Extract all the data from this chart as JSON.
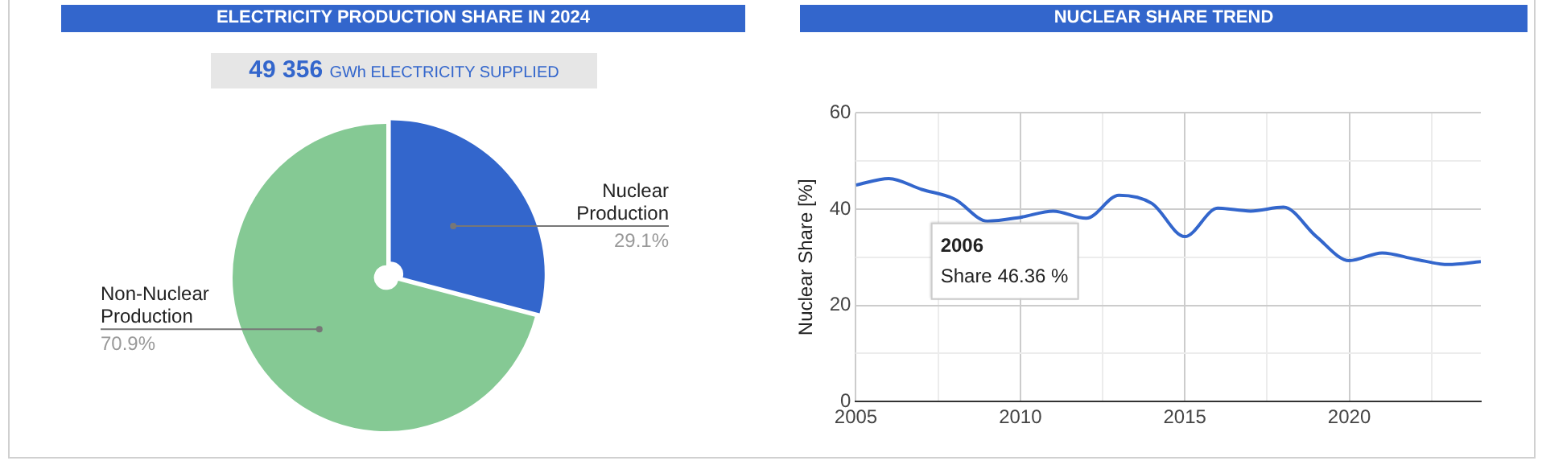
{
  "chart_data": [
    {
      "type": "pie",
      "title": "ELECTRICITY PRODUCTION SHARE IN 2024",
      "subtitle": "49 356 GWh ELECTRICITY SUPPLIED",
      "categories": [
        "Nuclear Production",
        "Non-Nuclear Production"
      ],
      "values": [
        29.1,
        70.9
      ],
      "colors": [
        "#3366cc",
        "#85c994"
      ],
      "value_labels": [
        "29.1%",
        "70.9%"
      ],
      "legend": false
    },
    {
      "type": "line",
      "title": "NUCLEAR SHARE TREND",
      "ylabel": "Nuclear Share [%]",
      "x": [
        2005,
        2006,
        2007,
        2008,
        2009,
        2010,
        2011,
        2012,
        2013,
        2014,
        2015,
        2016,
        2017,
        2018,
        2019,
        2020,
        2021,
        2022,
        2023,
        2024
      ],
      "series": [
        {
          "color": "#3366cc",
          "values": [
            45.0,
            46.36,
            44.1,
            42.1,
            37.5,
            38.3,
            39.6,
            38.1,
            42.9,
            41.2,
            34.3,
            40.2,
            39.6,
            40.4,
            34.3,
            29.3,
            30.9,
            29.6,
            28.5,
            29.1
          ]
        }
      ],
      "xlim": [
        2005,
        2024
      ],
      "xticks": [
        2005,
        {
          "value": 2007.5,
          "label": null
        },
        2010,
        {
          "value": 2012.5,
          "label": null
        },
        2015,
        {
          "value": 2017.5,
          "label": null
        },
        2020,
        {
          "value": 2022.5,
          "label": null
        }
      ],
      "ylim": [
        0,
        60
      ],
      "yticks": [
        0,
        {
          "value": 10,
          "label": null
        },
        20,
        {
          "value": 30,
          "label": null
        },
        40,
        {
          "value": 50,
          "label": null
        },
        60
      ],
      "grid": true,
      "legend": false,
      "marker": "none",
      "line_style": "solid",
      "annotations": [
        "2006",
        "Share 46.36 %"
      ]
    }
  ]
}
